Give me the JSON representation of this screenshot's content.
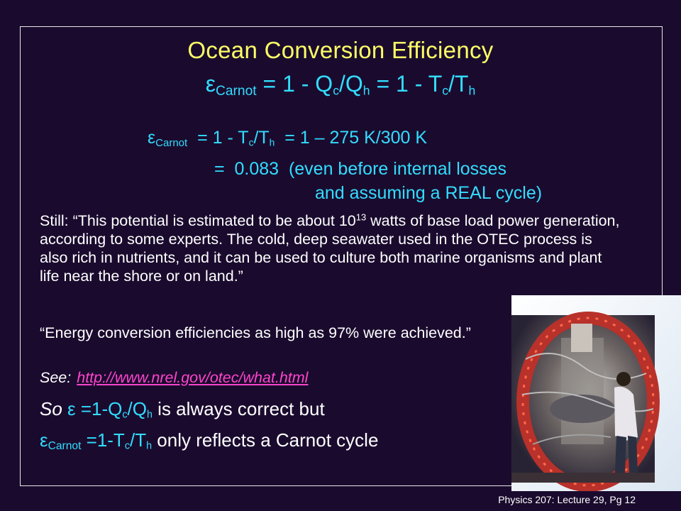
{
  "slide": {
    "title": "Ocean Conversion Efficiency",
    "equation_main": {
      "symbol": "ε",
      "subscript": "Carnot",
      "part1": " = 1 - Q",
      "sub_c": "c",
      "slash1": "/Q",
      "sub_h": "h",
      "part2": " = 1 - T",
      "sub_c2": "c",
      "slash2": "/T",
      "sub_h2": "h"
    },
    "equation_numeric": {
      "symbol": "ε",
      "subscript": "Carnot",
      "part1": "  = 1 - T",
      "sub_c": "c",
      "slash": "/T",
      "sub_h": "h",
      "part2": "  = 1 – 275 K/300 K"
    },
    "result_line1": "=  0.083  (even before internal losses",
    "result_line2": "and assuming a REAL cycle)",
    "still_prefix": "Still:  “This potential is estimated to be about 10",
    "still_exp": "13",
    "still_rest": " watts of base load power generation, according to some experts. The cold, deep seawater used in the OTEC process is also rich in nutrients, and it can be used to culture both marine organisms and plant life near the shore or on land.”",
    "quote2": "“Energy conversion efficiencies as high as 97% were achieved.”",
    "see_label": "See:",
    "see_link": "http://www.nrel.gov/otec/what.html",
    "so_line": {
      "so": "So",
      "symbol": "ε",
      "eq": " =1-Q",
      "sub_c": "c",
      "slash": "/Q",
      "sub_h": "h",
      "rest": " is always correct but"
    },
    "carnot_line": {
      "symbol": "ε",
      "subscript": "Carnot",
      "eq": " =1-T",
      "sub_c": "c",
      "slash": "/T",
      "sub_h": "h",
      "rest": " only reflects a Carnot cycle"
    },
    "footer": "Physics 207: Lecture 29, Pg 12"
  },
  "colors": {
    "background": "#1a0b2e",
    "title": "#ffff66",
    "equation": "#33ddff",
    "link": "#ff44cc"
  },
  "photo": {
    "icon": "otec-apparatus-photo"
  }
}
